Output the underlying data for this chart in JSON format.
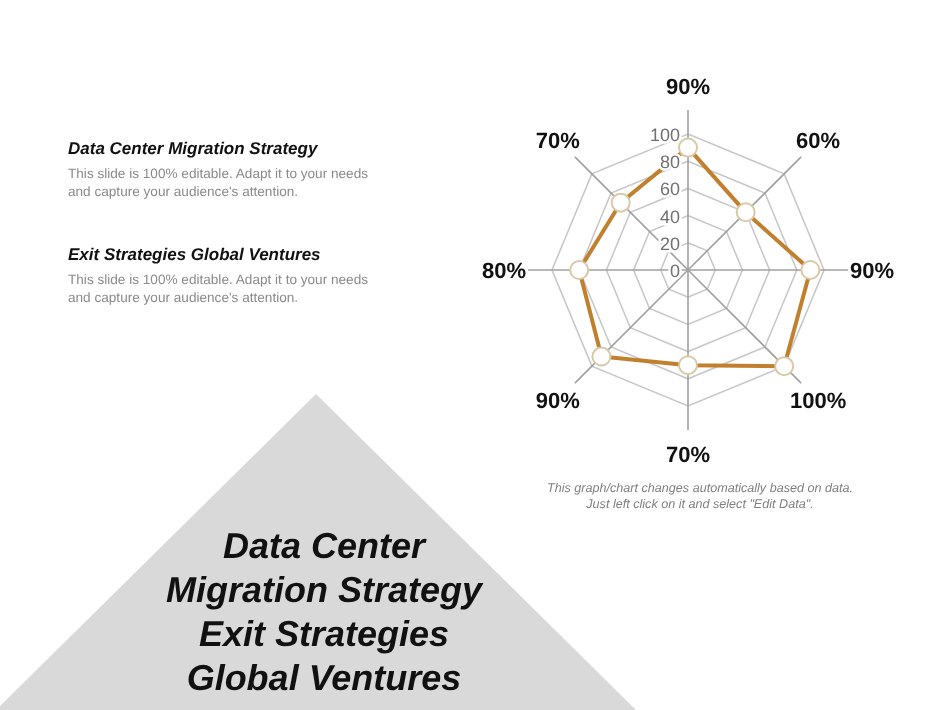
{
  "chart_data": {
    "type": "radar",
    "title": "Data Center Migration Strategy Exit Strategies Global Ventures",
    "annotations": [
      "Data Center Migration Strategy",
      "This slide is 100% editable. Adapt it to your needs and capture your audience's attention.",
      "Exit Strategies Global Ventures",
      "This slide is 100% editable. Adapt it to your needs and capture your audience's attention.",
      "This graph/chart changes automatically based on data. Just left click on it and select \"Edit Data\"."
    ],
    "categories": [
      "90%",
      "60%",
      "90%",
      "100%",
      "70%",
      "90%",
      "80%",
      "70%"
    ],
    "series": [
      {
        "color": "#c0802e",
        "values": [
          90,
          60,
          90,
          100,
          70,
          90,
          80,
          70
        ]
      }
    ],
    "ylim": [
      0,
      100
    ],
    "yticks": [
      0,
      20,
      40,
      60,
      80,
      100
    ],
    "grid": true,
    "marker": "circle"
  }
}
